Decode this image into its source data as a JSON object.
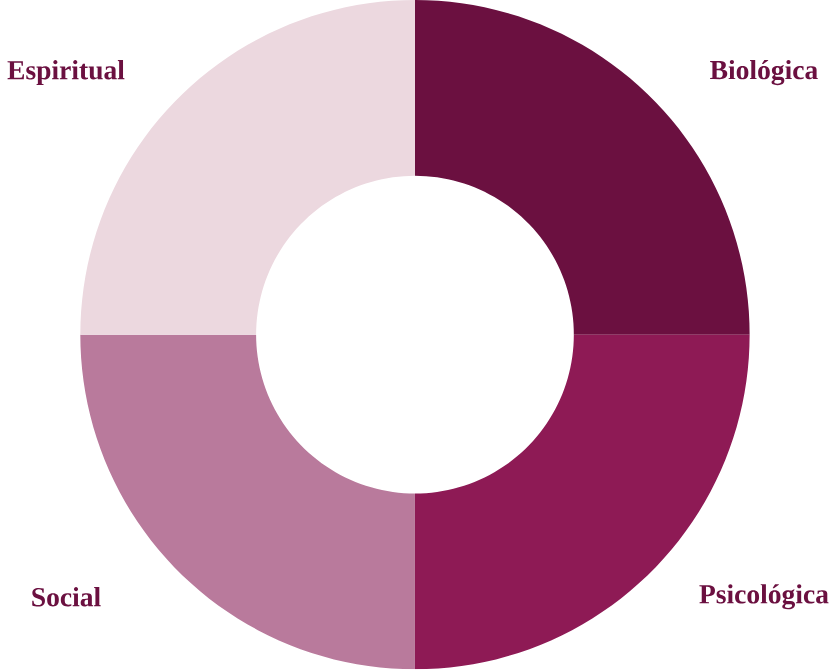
{
  "chart_data": {
    "type": "donut",
    "categories": [
      "Biológica",
      "Psicológica",
      "Social",
      "Espiritual"
    ],
    "values": [
      25,
      25,
      25,
      25
    ],
    "colors": [
      "#6b1040",
      "#8e1a55",
      "#b97a9c",
      "#ecd8df"
    ]
  }
}
